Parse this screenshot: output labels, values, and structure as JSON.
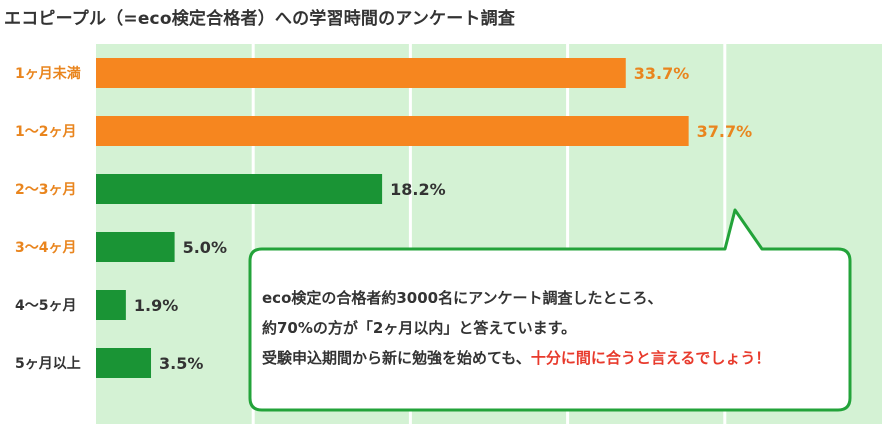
{
  "title": "エコピープル（=eco検定合格者）への学習時間のアンケート調査",
  "colors": {
    "plot_background": "#d4f2d4",
    "gridline": "#ffffff",
    "highlight_bar": "#f6861f",
    "normal_bar": "#1a9435",
    "highlight_label": "#e9851e",
    "normal_label": "#333333",
    "callout_border": "#23a33a",
    "callout_emphasis": "#e83a2c"
  },
  "chart_data": {
    "type": "bar",
    "orientation": "horizontal",
    "categories": [
      "1ヶ月未満",
      "1〜2ヶ月",
      "2〜3ヶ月",
      "3〜4ヶ月",
      "4〜5ヶ月",
      "5ヶ月以上"
    ],
    "values": [
      33.7,
      37.7,
      18.2,
      5.0,
      1.9,
      3.5
    ],
    "value_labels": [
      "33.7%",
      "37.7%",
      "18.2%",
      "5.0%",
      "1.9%",
      "3.5%"
    ],
    "bar_color_roles": [
      "highlight",
      "highlight",
      "normal",
      "normal",
      "normal",
      "normal"
    ],
    "category_label_color_roles": [
      "highlight",
      "highlight",
      "highlight",
      "highlight",
      "normal",
      "normal"
    ],
    "xlim": [
      0,
      50
    ],
    "grid": true
  },
  "callout": {
    "line1": "eco検定の合格者約3000名にアンケート調査したところ、",
    "line2": "約70%の方が「2ヶ月以内」と答えています。",
    "line3_prefix": "受験申込期間から新に勉強を始めても、",
    "line3_emphasis": "十分に間に合うと言えるでしょう！"
  }
}
